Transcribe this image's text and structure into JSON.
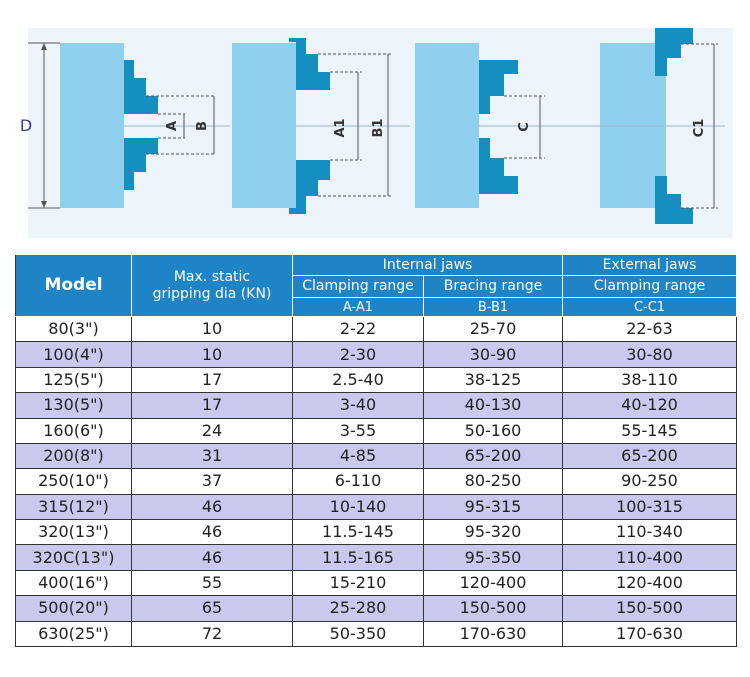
{
  "diagram": {
    "labels": {
      "d": "D",
      "a": "A",
      "b": "B",
      "a1": "A1",
      "b1": "B1",
      "c": "C",
      "c1": "C1"
    },
    "colors": {
      "background": "#eef4fb",
      "body": "#8fd0ee",
      "jaw": "#148fc0",
      "dim_line": "#555555",
      "label": "#3b3b8f"
    }
  },
  "table": {
    "headers": {
      "model": "Model",
      "max_static": "Max. static gripping dia (KN)",
      "internal_jaws": "Internal jaws",
      "external_jaws": "External jaws",
      "clamping_range": "Clamping range",
      "bracing_range": "Bracing range",
      "ext_clamping_range": "Clamping range",
      "a_a1": "A-A1",
      "b_b1": "B-B1",
      "c_c1": "C-C1"
    },
    "rows": [
      {
        "model": "80(3\")",
        "kn": "10",
        "a": "2-22",
        "b": "25-70",
        "c": "22-63"
      },
      {
        "model": "100(4\")",
        "kn": "10",
        "a": "2-30",
        "b": "30-90",
        "c": "30-80"
      },
      {
        "model": "125(5\")",
        "kn": "17",
        "a": "2.5-40",
        "b": "38-125",
        "c": "38-110"
      },
      {
        "model": "130(5\")",
        "kn": "17",
        "a": "3-40",
        "b": "40-130",
        "c": "40-120"
      },
      {
        "model": "160(6\")",
        "kn": "24",
        "a": "3-55",
        "b": "50-160",
        "c": "55-145"
      },
      {
        "model": "200(8\")",
        "kn": "31",
        "a": "4-85",
        "b": "65-200",
        "c": "65-200"
      },
      {
        "model": "250(10\")",
        "kn": "37",
        "a": "6-110",
        "b": "80-250",
        "c": "90-250"
      },
      {
        "model": "315(12\")",
        "kn": "46",
        "a": "10-140",
        "b": "95-315",
        "c": "100-315"
      },
      {
        "model": "320(13\")",
        "kn": "46",
        "a": "11.5-145",
        "b": "95-320",
        "c": "110-340"
      },
      {
        "model": "320C(13\")",
        "kn": "46",
        "a": "11.5-165",
        "b": "95-350",
        "c": "110-400"
      },
      {
        "model": "400(16\")",
        "kn": "55",
        "a": "15-210",
        "b": "120-400",
        "c": "120-400"
      },
      {
        "model": "500(20\")",
        "kn": "65",
        "a": "25-280",
        "b": "150-500",
        "c": "150-500"
      },
      {
        "model": "630(25\")",
        "kn": "72",
        "a": "50-350",
        "b": "170-630",
        "c": "170-630"
      }
    ],
    "colors": {
      "header": "#1f84c6",
      "shade_row": "#c9c9ee"
    }
  }
}
